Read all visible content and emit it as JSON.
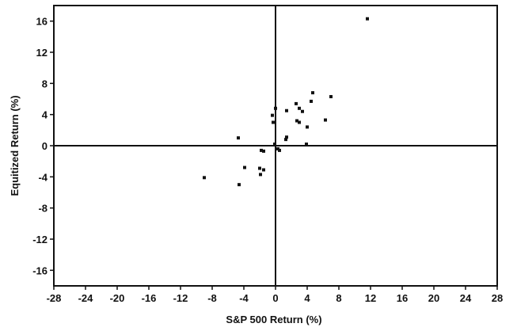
{
  "chart_data": {
    "type": "scatter",
    "title": "",
    "xlabel": "S&P 500 Return (%)",
    "ylabel": "Equitized Return (%)",
    "xlim": [
      -28,
      28
    ],
    "ylim": [
      -18,
      18
    ],
    "xticks": [
      -28,
      -24,
      -20,
      -16,
      -12,
      -8,
      -4,
      0,
      4,
      8,
      12,
      16,
      20,
      24,
      28
    ],
    "yticks": [
      -16,
      -12,
      -8,
      -4,
      0,
      4,
      8,
      12,
      16
    ],
    "grid": false,
    "legend": "none",
    "quadrant_lines": true,
    "marker_color": "#111111",
    "series": [
      {
        "points": [
          [
            11.6,
            16.3
          ],
          [
            7.0,
            6.3
          ],
          [
            4.7,
            6.8
          ],
          [
            4.5,
            5.7
          ],
          [
            6.3,
            3.3
          ],
          [
            4.0,
            2.4
          ],
          [
            2.6,
            5.4
          ],
          [
            3.0,
            4.8
          ],
          [
            3.4,
            4.4
          ],
          [
            1.4,
            4.5
          ],
          [
            2.7,
            3.2
          ],
          [
            3.0,
            3.0
          ],
          [
            1.4,
            1.1
          ],
          [
            1.3,
            0.8
          ],
          [
            -0.4,
            3.9
          ],
          [
            -0.3,
            3.0
          ],
          [
            0.0,
            4.8
          ],
          [
            3.9,
            0.2
          ],
          [
            -0.1,
            0.2
          ],
          [
            0.3,
            -0.4
          ],
          [
            0.5,
            -0.6
          ],
          [
            -4.7,
            1.0
          ],
          [
            -1.8,
            -0.6
          ],
          [
            -1.5,
            -0.7
          ],
          [
            -3.9,
            -2.8
          ],
          [
            -2.0,
            -2.9
          ],
          [
            -1.5,
            -3.1
          ],
          [
            -1.9,
            -3.7
          ],
          [
            -9.0,
            -4.1
          ],
          [
            -4.6,
            -5.0
          ]
        ]
      }
    ]
  }
}
